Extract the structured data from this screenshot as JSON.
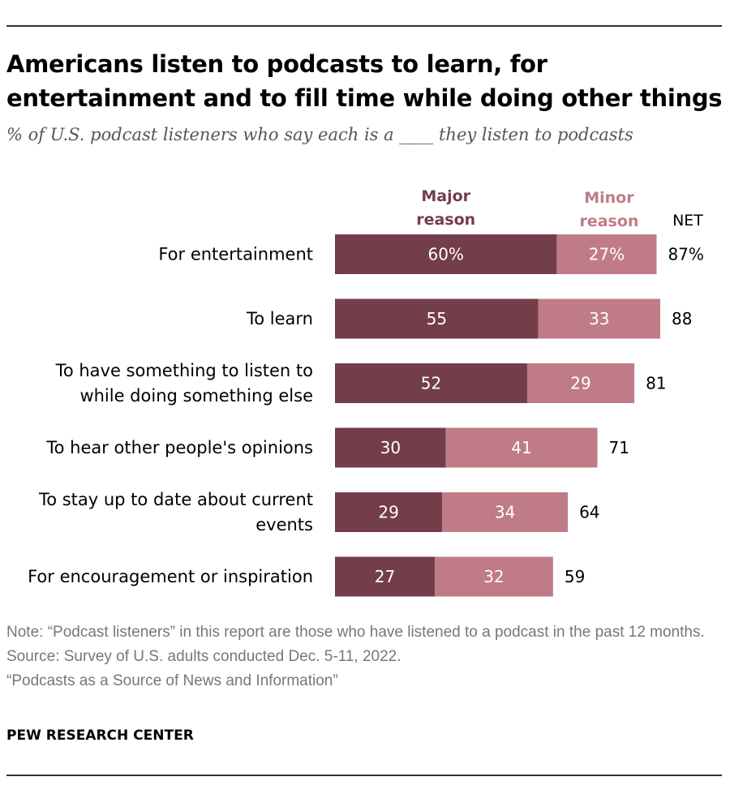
{
  "header": {
    "title": "Americans listen to podcasts to learn, for entertainment and to fill time while doing other things",
    "subtitle": "% of U.S. podcast listeners who say each is a ____ they listen to podcasts"
  },
  "chart_data": {
    "type": "bar",
    "orientation": "horizontal",
    "stacked": true,
    "categories": [
      "For entertainment",
      "To learn",
      "To have something to listen to while doing something else",
      "To hear other people's opinions",
      "To stay up to date about current events",
      "For encouragement or inspiration"
    ],
    "category_lines": [
      [
        "For entertainment"
      ],
      [
        "To learn"
      ],
      [
        "To have something to listen to",
        "while doing something else"
      ],
      [
        "To hear other people's opinions"
      ],
      [
        "To stay up to date about current",
        "events"
      ],
      [
        "For encouragement or inspiration"
      ]
    ],
    "series": [
      {
        "name": "Major reason",
        "name_lines": [
          "Major",
          "reason"
        ],
        "color": "#733d49",
        "values": [
          60,
          55,
          52,
          30,
          29,
          27
        ],
        "labels": [
          "60%",
          "55",
          "52",
          "30",
          "29",
          "27"
        ]
      },
      {
        "name": "Minor reason",
        "name_lines": [
          "Minor",
          "reason"
        ],
        "color": "#bf7c86",
        "values": [
          27,
          33,
          29,
          41,
          34,
          32
        ],
        "labels": [
          "27%",
          "33",
          "29",
          "41",
          "34",
          "32"
        ]
      }
    ],
    "net": {
      "name": "NET",
      "values": [
        87,
        88,
        81,
        71,
        64,
        59
      ],
      "labels": [
        "87%",
        "88",
        "81",
        "71",
        "64",
        "59"
      ]
    },
    "xlim": [
      0,
      88
    ],
    "grid": false,
    "legend": "top"
  },
  "footer": {
    "note": "Note: “Podcast listeners” in this report are those who have listened to a podcast in the past 12 months.",
    "source": "Source: Survey of U.S. adults conducted Dec. 5-11, 2022.",
    "report": "“Podcasts as a Source of News and Information”",
    "brand": "PEW RESEARCH CENTER"
  }
}
